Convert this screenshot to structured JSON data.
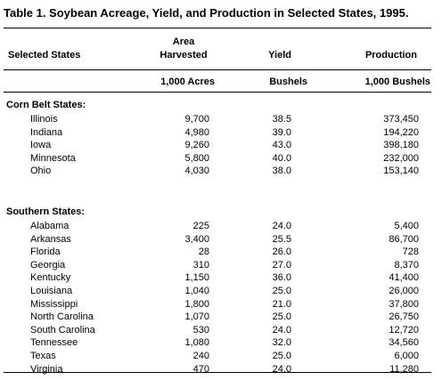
{
  "title": "Table 1.  Soybean Acreage, Yield, and Production in Selected States, 1995.",
  "headers": {
    "state": "Selected States",
    "area_line1": "Area",
    "area_line2": "Harvested",
    "yield": "Yield",
    "production": "Production"
  },
  "units": {
    "area": "1,000 Acres",
    "yield": "Bushels",
    "production": "1,000 Bushels"
  },
  "sections": [
    {
      "name": "Corn Belt States:",
      "rows": [
        {
          "state": "Illinois",
          "area": "9,700",
          "yield": "38.5",
          "production": "373,450"
        },
        {
          "state": "Indiana",
          "area": "4,980",
          "yield": "39.0",
          "production": "194,220"
        },
        {
          "state": "Iowa",
          "area": "9,260",
          "yield": "43.0",
          "production": "398,180"
        },
        {
          "state": "Minnesota",
          "area": "5,800",
          "yield": "40.0",
          "production": "232,000"
        },
        {
          "state": "Ohio",
          "area": "4,030",
          "yield": "38.0",
          "production": "153,140"
        }
      ]
    },
    {
      "name": "Southern States:",
      "rows": [
        {
          "state": "Alabama",
          "area": "225",
          "yield": "24.0",
          "production": "5,400"
        },
        {
          "state": "Arkansas",
          "area": "3,400",
          "yield": "25.5",
          "production": "86,700"
        },
        {
          "state": "Florida",
          "area": "28",
          "yield": "26.0",
          "production": "728"
        },
        {
          "state": "Georgia",
          "area": "310",
          "yield": "27.0",
          "production": "8,370"
        },
        {
          "state": "Kentucky",
          "area": "1,150",
          "yield": "36.0",
          "production": "41,400"
        },
        {
          "state": "Louisiana",
          "area": "1,040",
          "yield": "25.0",
          "production": "26,000"
        },
        {
          "state": "Mississippi",
          "area": "1,800",
          "yield": "21.0",
          "production": "37,800"
        },
        {
          "state": "North Carolina",
          "area": "1,070",
          "yield": "25.0",
          "production": "26,750"
        },
        {
          "state": "South Carolina",
          "area": "530",
          "yield": "24.0",
          "production": "12,720"
        },
        {
          "state": "Tennessee",
          "area": "1,080",
          "yield": "32.0",
          "production": "34,560"
        },
        {
          "state": "Texas",
          "area": "240",
          "yield": "25.0",
          "production": "6,000"
        },
        {
          "state": "Virginia",
          "area": "470",
          "yield": "24.0",
          "production": "11,280"
        }
      ]
    }
  ]
}
